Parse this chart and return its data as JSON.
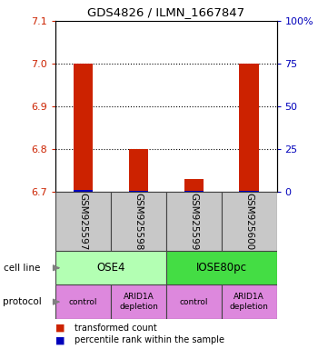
{
  "title": "GDS4826 / ILMN_1667847",
  "samples": [
    "GSM925597",
    "GSM925598",
    "GSM925599",
    "GSM925600"
  ],
  "red_values": [
    7.0,
    6.8,
    6.73,
    7.0
  ],
  "blue_values": [
    6.704,
    6.703,
    6.702,
    6.703
  ],
  "ylim_left": [
    6.7,
    7.1
  ],
  "ylim_right": [
    0,
    100
  ],
  "yticks_left": [
    6.7,
    6.8,
    6.9,
    7.0,
    7.1
  ],
  "yticks_right": [
    0,
    25,
    50,
    75,
    100
  ],
  "ytick_labels_right": [
    "0",
    "25",
    "50",
    "75",
    "100%"
  ],
  "grid_values": [
    6.8,
    6.9,
    7.0
  ],
  "cell_line_labels": [
    "OSE4",
    "IOSE80pc"
  ],
  "cell_line_colors": [
    "#b3ffb3",
    "#44dd44"
  ],
  "protocol_labels": [
    "control",
    "ARID1A\ndepletion",
    "control",
    "ARID1A\ndepletion"
  ],
  "protocol_color": "#dd88dd",
  "sample_box_color": "#c8c8c8",
  "bar_color_red": "#cc2200",
  "bar_color_blue": "#0000bb",
  "left_label_color": "#cc2200",
  "right_label_color": "#0000bb",
  "annot_cell_line": "cell line",
  "annot_protocol": "protocol",
  "legend_red": "transformed count",
  "legend_blue": "percentile rank within the sample"
}
